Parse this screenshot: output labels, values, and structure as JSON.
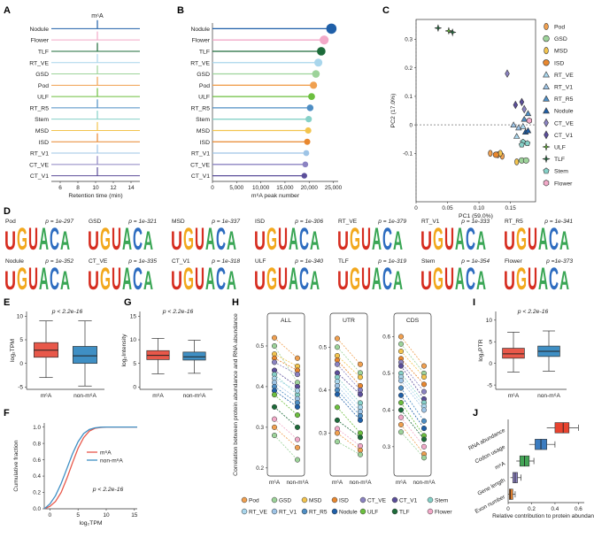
{
  "panel_labels": {
    "A": "A",
    "B": "B",
    "C": "C",
    "D": "D",
    "E": "E",
    "F": "F",
    "G": "G",
    "H": "H",
    "I": "I",
    "J": "J"
  },
  "colors": {
    "Nodule": "#1f5fa8",
    "Flower": "#f2a9c8",
    "TLF": "#1d6b3a",
    "RT_VE": "#a9d6ec",
    "GSD": "#9dd39a",
    "Pod": "#f0a050",
    "ULF": "#6cbf3f",
    "RT_R5": "#4e8ec4",
    "Stem": "#86d1c8",
    "MSD": "#f3c44e",
    "ISD": "#e8872e",
    "RT_V1": "#9ec4e6",
    "CT_VE": "#8b83c2",
    "CT_V1": "#5b4e9a",
    "m6A_box": "#e8584a",
    "non_box": "#3f8fc4",
    "J_bars": [
      "#e8432f",
      "#3b7cc0",
      "#43a556",
      "#8e84c4",
      "#e8832e"
    ]
  },
  "chart_data": [
    {
      "id": "A",
      "type": "line",
      "title": "m⁶A",
      "xlabel": "Retention time (min)",
      "xticks": [
        "6",
        "8",
        "10",
        "12",
        "14"
      ],
      "xlim": [
        5,
        15
      ],
      "peak_at": 10.2,
      "tracks": [
        "Nodule",
        "Flower",
        "TLF",
        "RT_VE",
        "GSD",
        "Pod",
        "ULF",
        "RT_R5",
        "Stem",
        "MSD",
        "ISD",
        "RT_V1",
        "CT_VE",
        "CT_V1"
      ]
    },
    {
      "id": "B",
      "type": "bar",
      "xlabel": "m⁶A peak number",
      "xticks": [
        "0",
        "5,000",
        "10,000",
        "15,000",
        "20,000",
        "25,000"
      ],
      "xlim": [
        0,
        26000
      ],
      "categories": [
        "Nodule",
        "Flower",
        "TLF",
        "RT_VE",
        "GSD",
        "Pod",
        "ULF",
        "RT_R5",
        "Stem",
        "MSD",
        "ISD",
        "RT_V1",
        "CT_VE",
        "CT_V1"
      ],
      "values": [
        24600,
        23100,
        22500,
        21900,
        21400,
        20900,
        20500,
        20200,
        19900,
        19800,
        19600,
        19400,
        19200,
        19000
      ]
    },
    {
      "id": "C",
      "type": "scatter",
      "xlabel": "PC1 (59.0%)",
      "ylabel": "PC2 (17.0%)",
      "xlim": [
        0,
        0.19
      ],
      "ylim": [
        -0.27,
        0.37
      ],
      "xticks": [
        "0",
        "0.05",
        "0.10",
        "0.15"
      ],
      "yticks": [
        "-0.1",
        "0",
        "0.1",
        "0.2",
        "0.3"
      ],
      "legend": [
        {
          "name": "Pod",
          "shape": "ellipse"
        },
        {
          "name": "GSD",
          "shape": "circle"
        },
        {
          "name": "MSD",
          "shape": "ellipse"
        },
        {
          "name": "ISD",
          "shape": "circle"
        },
        {
          "name": "RT_VE",
          "shape": "triangle"
        },
        {
          "name": "RT_V1",
          "shape": "triangle"
        },
        {
          "name": "RT_R5",
          "shape": "triangle"
        },
        {
          "name": "Nodule",
          "shape": "triangle"
        },
        {
          "name": "CT_VE",
          "shape": "diamond"
        },
        {
          "name": "CT_V1",
          "shape": "diamond"
        },
        {
          "name": "ULF",
          "shape": "star"
        },
        {
          "name": "TLF",
          "shape": "star"
        },
        {
          "name": "Stem",
          "shape": "pentagon"
        },
        {
          "name": "Flower",
          "shape": "hexagon"
        }
      ],
      "points": [
        {
          "g": "TLF",
          "x": 0.035,
          "y": 0.34
        },
        {
          "g": "ULF",
          "x": 0.052,
          "y": 0.33
        },
        {
          "g": "TLF",
          "x": 0.058,
          "y": 0.325
        },
        {
          "g": "CT_VE",
          "x": 0.145,
          "y": 0.18
        },
        {
          "g": "CT_V1",
          "x": 0.158,
          "y": 0.07
        },
        {
          "g": "CT_V1",
          "x": 0.168,
          "y": 0.08
        },
        {
          "g": "CT_VE",
          "x": 0.172,
          "y": 0.055
        },
        {
          "g": "RT_R5",
          "x": 0.178,
          "y": 0.04
        },
        {
          "g": "RT_R5",
          "x": 0.172,
          "y": 0.02
        },
        {
          "g": "Flower",
          "x": 0.18,
          "y": 0.015
        },
        {
          "g": "RT_V1",
          "x": 0.155,
          "y": 0.0
        },
        {
          "g": "RT_V1",
          "x": 0.163,
          "y": -0.01
        },
        {
          "g": "RT_VE",
          "x": 0.17,
          "y": -0.005
        },
        {
          "g": "Nodule",
          "x": 0.174,
          "y": -0.025
        },
        {
          "g": "Nodule",
          "x": 0.178,
          "y": -0.02
        },
        {
          "g": "Stem",
          "x": 0.17,
          "y": -0.06
        },
        {
          "g": "Stem",
          "x": 0.168,
          "y": -0.07
        },
        {
          "g": "Stem",
          "x": 0.177,
          "y": -0.065
        },
        {
          "g": "RT_VE",
          "x": 0.16,
          "y": -0.04
        },
        {
          "g": "Pod",
          "x": 0.118,
          "y": -0.1
        },
        {
          "g": "Pod",
          "x": 0.13,
          "y": -0.105
        },
        {
          "g": "Pod",
          "x": 0.137,
          "y": -0.11
        },
        {
          "g": "MSD",
          "x": 0.134,
          "y": -0.1
        },
        {
          "g": "ISD",
          "x": 0.127,
          "y": -0.105
        },
        {
          "g": "GSD",
          "x": 0.168,
          "y": -0.125
        },
        {
          "g": "GSD",
          "x": 0.175,
          "y": -0.125
        },
        {
          "g": "MSD",
          "x": 0.16,
          "y": -0.13
        }
      ]
    },
    {
      "id": "D",
      "type": "motif",
      "items": [
        {
          "sample": "Pod",
          "p": "p = 1e-297"
        },
        {
          "sample": "GSD",
          "p": "p = 1e-321"
        },
        {
          "sample": "MSD",
          "p": "p = 1e-337"
        },
        {
          "sample": "ISD",
          "p": "p = 1e-306"
        },
        {
          "sample": "RT_VE",
          "p": "p = 1e-379"
        },
        {
          "sample": "RT_V1",
          "p": "p = 1e-333"
        },
        {
          "sample": "RT_R5",
          "p": "p = 1e-341"
        },
        {
          "sample": "Nodule",
          "p": "p = 1e-352"
        },
        {
          "sample": "CT_VE",
          "p": "p = 1e-335"
        },
        {
          "sample": "CT_V1",
          "p": "p = 1e-318"
        },
        {
          "sample": "ULF",
          "p": "p = 1e-340"
        },
        {
          "sample": "TLF",
          "p": "p = 1e-319"
        },
        {
          "sample": "Stem",
          "p": "p = 1e-354"
        },
        {
          "sample": "Flower",
          "p": "p =1e-373"
        }
      ]
    },
    {
      "id": "E",
      "type": "box",
      "ylabel": "log₂TPM",
      "annotation": "p < 2.2e-16",
      "categories": [
        "m⁶A",
        "non-m⁶A"
      ],
      "yticks": [
        "-5",
        "0",
        "5",
        "10"
      ],
      "ylim": [
        -5.5,
        11
      ],
      "boxes": [
        {
          "min": -3.0,
          "q1": 1.3,
          "med": 2.8,
          "q3": 4.4,
          "max": 9.0
        },
        {
          "min": -4.8,
          "q1": 0.0,
          "med": 1.6,
          "q3": 3.6,
          "max": 9.0
        }
      ]
    },
    {
      "id": "F",
      "type": "line",
      "xlabel": "log₂TPM",
      "ylabel": "Cumulative fraction",
      "annotation": "p < 2.2e-16",
      "xticks": [
        "0",
        "5",
        "10",
        "15"
      ],
      "yticks": [
        "0.0",
        "0.2",
        "0.4",
        "0.6",
        "0.8",
        "1.0"
      ],
      "xlim": [
        -1,
        15.5
      ],
      "ylim": [
        0,
        1.05
      ],
      "series": [
        {
          "name": "m⁶A",
          "x": [
            -1,
            0,
            1,
            2,
            3,
            4,
            5,
            6,
            7,
            8,
            9,
            10,
            15.5
          ],
          "y": [
            0,
            0.03,
            0.09,
            0.2,
            0.37,
            0.56,
            0.74,
            0.87,
            0.95,
            0.985,
            0.995,
            1,
            1
          ]
        },
        {
          "name": "non-m⁶A",
          "x": [
            -1,
            0,
            1,
            2,
            3,
            4,
            5,
            6,
            7,
            8,
            9,
            10,
            15.5
          ],
          "y": [
            0,
            0.06,
            0.16,
            0.31,
            0.49,
            0.67,
            0.82,
            0.92,
            0.97,
            0.99,
            0.998,
            1,
            1
          ]
        }
      ]
    },
    {
      "id": "G",
      "type": "box",
      "ylabel": "log₂Intensity",
      "annotation": "p < 2.2e-16",
      "categories": [
        "m⁶A",
        "non-m⁶A"
      ],
      "yticks": [
        "0",
        "5",
        "10",
        "15"
      ],
      "ylim": [
        -0.5,
        16
      ],
      "boxes": [
        {
          "min": 2.8,
          "q1": 5.8,
          "med": 6.7,
          "q3": 7.7,
          "max": 10.3
        },
        {
          "min": 2.9,
          "q1": 5.7,
          "med": 6.4,
          "q3": 7.4,
          "max": 9.9
        }
      ]
    },
    {
      "id": "H",
      "type": "scatter",
      "ylabel": "Correlation between protein abundance and RNA abundance",
      "panels": [
        {
          "title": "ALL",
          "yticks": [
            "0.2",
            "0.3",
            "0.4",
            "0.5"
          ],
          "ylim": [
            0.18,
            0.55
          ],
          "categories": [
            "m⁶A",
            "non-m⁶A"
          ],
          "pairs": [
            [
              0.52,
              0.47
            ],
            [
              0.5,
              0.41
            ],
            [
              0.48,
              0.45
            ],
            [
              0.47,
              0.44
            ],
            [
              0.46,
              0.43
            ],
            [
              0.44,
              0.4
            ],
            [
              0.43,
              0.38
            ],
            [
              0.42,
              0.39
            ],
            [
              0.41,
              0.37
            ],
            [
              0.4,
              0.36
            ],
            [
              0.39,
              0.35
            ],
            [
              0.38,
              0.33
            ],
            [
              0.35,
              0.3
            ],
            [
              0.32,
              0.27
            ],
            [
              0.3,
              0.25
            ],
            [
              0.28,
              0.22
            ]
          ]
        },
        {
          "title": "UTR",
          "yticks": [
            "0.3",
            "0.4",
            "0.5"
          ],
          "ylim": [
            0.2,
            0.55
          ],
          "categories": [
            "m⁶A",
            "non-m⁶A"
          ],
          "pairs": [
            [
              0.52,
              0.46
            ],
            [
              0.5,
              0.44
            ],
            [
              0.48,
              0.43
            ],
            [
              0.47,
              0.41
            ],
            [
              0.46,
              0.4
            ],
            [
              0.44,
              0.39
            ],
            [
              0.43,
              0.37
            ],
            [
              0.42,
              0.36
            ],
            [
              0.41,
              0.35
            ],
            [
              0.4,
              0.34
            ],
            [
              0.39,
              0.33
            ],
            [
              0.36,
              0.3
            ],
            [
              0.33,
              0.29
            ],
            [
              0.31,
              0.27
            ],
            [
              0.3,
              0.26
            ],
            [
              0.28,
              0.25
            ]
          ]
        },
        {
          "title": "CDS",
          "yticks": [
            "0.3",
            "0.4",
            "0.5",
            "0.6"
          ],
          "ylim": [
            0.22,
            0.63
          ],
          "categories": [
            "m⁶A",
            "non-m⁶A"
          ],
          "pairs": [
            [
              0.6,
              0.52
            ],
            [
              0.58,
              0.5
            ],
            [
              0.56,
              0.49
            ],
            [
              0.54,
              0.47
            ],
            [
              0.53,
              0.45
            ],
            [
              0.52,
              0.43
            ],
            [
              0.5,
              0.42
            ],
            [
              0.49,
              0.41
            ],
            [
              0.48,
              0.4
            ],
            [
              0.46,
              0.37
            ],
            [
              0.44,
              0.35
            ],
            [
              0.42,
              0.33
            ],
            [
              0.4,
              0.32
            ],
            [
              0.38,
              0.3
            ],
            [
              0.36,
              0.28
            ],
            [
              0.34,
              0.27
            ]
          ]
        }
      ],
      "legend": [
        "Pod",
        "GSD",
        "MSD",
        "ISD",
        "CT_VE",
        "CT_V1",
        "Stem",
        "RT_VE",
        "RT_V1",
        "RT_R5",
        "Nodule",
        "ULF",
        "TLF",
        "Flower"
      ]
    },
    {
      "id": "I",
      "type": "box",
      "ylabel": "log₂PTR",
      "annotation": "p < 2.2e-16",
      "categories": [
        "m⁶A",
        "non-m⁶A"
      ],
      "yticks": [
        "-5",
        "0",
        "5",
        "10"
      ],
      "ylim": [
        -6,
        12
      ],
      "boxes": [
        {
          "min": -2.0,
          "q1": 1.2,
          "med": 2.2,
          "q3": 3.5,
          "max": 7.2
        },
        {
          "min": -1.8,
          "q1": 1.6,
          "med": 2.8,
          "q3": 4.0,
          "max": 7.5
        }
      ]
    },
    {
      "id": "J",
      "type": "bar",
      "xlabel": "Relative contribution to protein abundance",
      "xticks": [
        "0",
        "0.2",
        "0.4",
        "0.6"
      ],
      "xlim": [
        0,
        0.65
      ],
      "categories": [
        "RNA abundance",
        "Codon usage",
        "m⁶A",
        "Gene length",
        "Exon number"
      ],
      "boxes": [
        {
          "min": 0.33,
          "q1": 0.4,
          "med": 0.47,
          "q3": 0.52,
          "max": 0.6
        },
        {
          "min": 0.18,
          "q1": 0.23,
          "med": 0.28,
          "q3": 0.33,
          "max": 0.4
        },
        {
          "min": 0.07,
          "q1": 0.1,
          "med": 0.14,
          "q3": 0.18,
          "max": 0.22
        },
        {
          "min": 0.02,
          "q1": 0.04,
          "med": 0.06,
          "q3": 0.08,
          "max": 0.11
        },
        {
          "min": 0.0,
          "q1": 0.01,
          "med": 0.02,
          "q3": 0.04,
          "max": 0.06
        }
      ]
    }
  ]
}
